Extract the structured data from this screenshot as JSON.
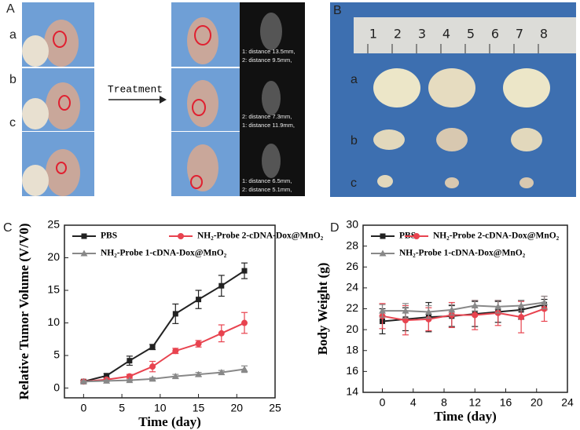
{
  "panels": {
    "A": {
      "label": "A",
      "rows": [
        "a",
        "b",
        "c"
      ],
      "arrow": "Treatment",
      "mri": [
        [
          "1: distance 13.5mm,",
          "2: distance 9.5mm,"
        ],
        [
          "2: distance 7.3mm,",
          "1: distance 11.9mm,"
        ],
        [
          "1: distance 6.5mm,",
          "2: distance 5.1mm,"
        ]
      ]
    },
    "B": {
      "label": "B",
      "rows": [
        "a",
        "b",
        "c"
      ],
      "ruler": [
        1,
        2,
        3,
        4,
        5,
        6,
        7,
        8
      ]
    }
  },
  "chart_data": [
    {
      "type": "line",
      "label": "C",
      "x_label": "Time (day)",
      "y_label": "Relative Tumor Volume (V/V0)",
      "xlim": [
        -2.5,
        25
      ],
      "xticks": [
        0,
        5,
        10,
        15,
        20,
        25
      ],
      "ylim": [
        -1.5,
        25
      ],
      "yticks": [
        0,
        5,
        10,
        15,
        20,
        25
      ],
      "x": [
        0,
        3,
        6,
        9,
        12,
        15,
        18,
        21
      ],
      "series": [
        {
          "name": "PBS",
          "color": "#222222",
          "marker": "square",
          "values": [
            1.0,
            1.9,
            4.2,
            6.3,
            11.4,
            13.6,
            15.7,
            18.0
          ],
          "errors": [
            0.2,
            0.3,
            0.7,
            0.4,
            1.5,
            1.4,
            1.6,
            1.2
          ]
        },
        {
          "name": "NH₂-Probe 2-cDNA-Dox@MnO₂",
          "color": "#e8434f",
          "marker": "circle",
          "values": [
            1.0,
            1.3,
            1.8,
            3.3,
            5.7,
            6.8,
            8.4,
            10.0
          ],
          "errors": [
            0.1,
            0.2,
            0.3,
            0.8,
            0.4,
            0.5,
            1.3,
            1.6
          ]
        },
        {
          "name": "NH₂-Probe 1-cDNA-Dox@MnO₂",
          "color": "#888888",
          "marker": "triangle",
          "values": [
            1.0,
            1.1,
            1.2,
            1.4,
            1.8,
            2.1,
            2.4,
            2.9
          ],
          "errors": [
            0.1,
            0.1,
            0.1,
            0.2,
            0.3,
            0.3,
            0.3,
            0.5
          ]
        }
      ]
    },
    {
      "type": "line",
      "label": "D",
      "x_label": "Time (day)",
      "y_label": "Body Weight (g)",
      "xlim": [
        -2.5,
        24
      ],
      "xticks": [
        0,
        4,
        8,
        12,
        16,
        20,
        24
      ],
      "ylim": [
        14,
        30
      ],
      "yticks": [
        14,
        16,
        18,
        20,
        22,
        24,
        26,
        28,
        30
      ],
      "x": [
        0,
        3,
        6,
        9,
        12,
        15,
        18,
        21
      ],
      "series": [
        {
          "name": "PBS",
          "color": "#222222",
          "marker": "square",
          "values": [
            20.8,
            21.0,
            21.2,
            21.3,
            21.5,
            21.7,
            21.9,
            22.4
          ],
          "errors": [
            1.2,
            1.1,
            1.4,
            1.0,
            1.2,
            1.0,
            0.9,
            0.5
          ]
        },
        {
          "name": "NH₂-Probe 2-cDNA-Dox@MnO₂",
          "color": "#e8434f",
          "marker": "circle",
          "values": [
            21.3,
            20.9,
            21.0,
            21.4,
            21.4,
            21.6,
            21.2,
            22.0
          ],
          "errors": [
            1.2,
            1.4,
            1.1,
            1.2,
            1.4,
            1.2,
            1.5,
            1.2
          ]
        },
        {
          "name": "NH₂-Probe 1-cDNA-Dox@MnO₂",
          "color": "#888888",
          "marker": "triangle",
          "values": [
            21.8,
            21.8,
            21.7,
            21.9,
            22.3,
            22.2,
            22.3,
            22.6
          ],
          "errors": [
            0.6,
            0.7,
            0.6,
            0.5,
            0.5,
            0.6,
            0.5,
            0.6
          ]
        }
      ]
    }
  ]
}
